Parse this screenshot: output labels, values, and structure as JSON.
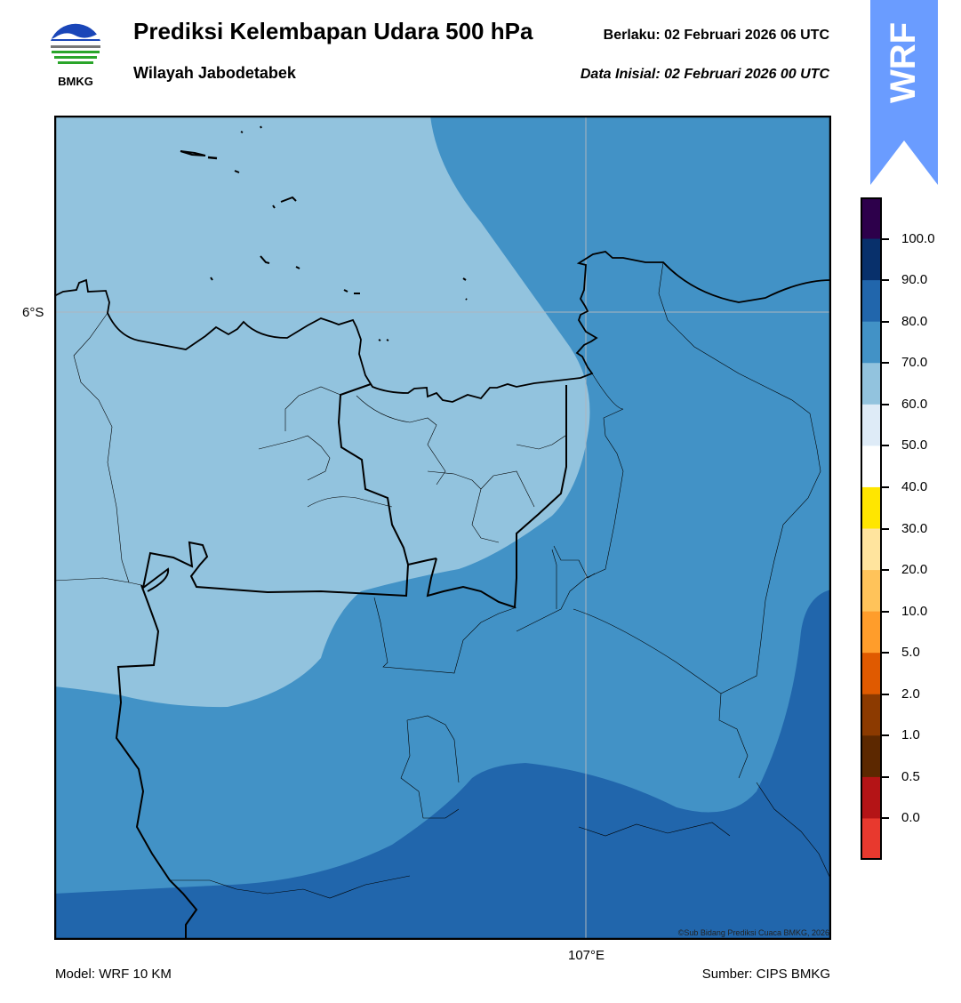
{
  "header": {
    "title": "Prediksi Kelembapan Udara 500 hPa",
    "subtitle": "Wilayah Jabodetabek",
    "valid_time": "Berlaku:  02 Februari 2026 06 UTC",
    "init_time": "Data Inisial:  02 Februari 2026 00 UTC"
  },
  "logo": {
    "text": "BMKG",
    "icon": "bmkg-logo"
  },
  "badge": {
    "text": "WRF",
    "color": "#6a9cff"
  },
  "map": {
    "lat_label": "6°S",
    "lon_label": "107°E",
    "credit": "©Sub Bidang Prediksi Cuaca BMKG, 2026",
    "fill_colors": {
      "60-70": "#92c3de",
      "70-80": "#4292c6",
      "80-90": "#2166ac"
    }
  },
  "colorbar": {
    "labels": [
      "100.0",
      "90.0",
      "80.0",
      "70.0",
      "60.0",
      "50.0",
      "40.0",
      "30.0",
      "20.0",
      "10.0",
      "5.0",
      "2.0",
      "1.0",
      "0.5",
      "0.0"
    ],
    "colors": [
      "#2d004b",
      "#08306b",
      "#2166ac",
      "#4292c6",
      "#92c3de",
      "#deebf7",
      "#ffffff",
      "#ffe600",
      "#ffe49e",
      "#ffc35a",
      "#ff9d2b",
      "#e05a00",
      "#8c3a00",
      "#5c2800",
      "#b41416",
      "#e8392e"
    ]
  },
  "footer": {
    "model": "Model: WRF 10 KM",
    "source": "Sumber: CIPS BMKG"
  }
}
